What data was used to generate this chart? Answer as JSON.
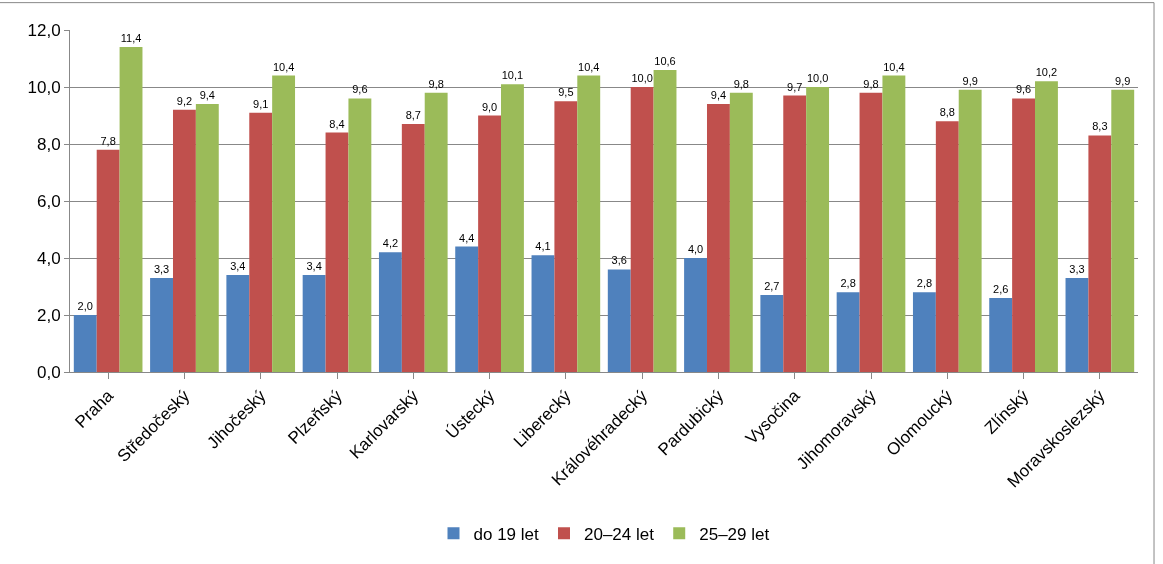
{
  "chart_data": {
    "type": "bar",
    "categories": [
      "Praha",
      "Středočeský",
      "Jihočeský",
      "Plzeňský",
      "Karlovarský",
      "Ústecký",
      "Liberecký",
      "Královéhradecký",
      "Pardubický",
      "Vysočina",
      "Jihomoravský",
      "Olomoucký",
      "Zlínský",
      "Moravskoslezský"
    ],
    "series": [
      {
        "name": "do 19 let",
        "color": "#4f81bd",
        "values": [
          2.0,
          3.3,
          3.4,
          3.4,
          4.2,
          4.4,
          4.1,
          3.6,
          4.0,
          2.7,
          2.8,
          2.8,
          2.6,
          3.3
        ],
        "value_labels": [
          "2,0",
          "3,3",
          "3,4",
          "3,4",
          "4,2",
          "4,4",
          "4,1",
          "3,6",
          "4,0",
          "2,7",
          "2,8",
          "2,8",
          "2,6",
          "3,3"
        ]
      },
      {
        "name": "20–24 let",
        "color": "#c0504d",
        "values": [
          7.8,
          9.2,
          9.1,
          8.4,
          8.7,
          9.0,
          9.5,
          10.0,
          9.4,
          9.7,
          9.8,
          8.8,
          9.6,
          8.3
        ],
        "value_labels": [
          "7,8",
          "9,2",
          "9,1",
          "8,4",
          "8,7",
          "9,0",
          "9,5",
          "10,0",
          "9,4",
          "9,7",
          "9,8",
          "8,8",
          "9,6",
          "8,3"
        ]
      },
      {
        "name": "25–29 let",
        "color": "#9bbb59",
        "values": [
          11.4,
          9.4,
          10.4,
          9.6,
          9.8,
          10.1,
          10.4,
          10.6,
          9.8,
          10.0,
          10.4,
          9.9,
          10.2,
          9.9
        ],
        "value_labels": [
          "11,4",
          "9,4",
          "10,4",
          "9,6",
          "9,8",
          "10,1",
          "10,4",
          "10,6",
          "9,8",
          "10,0",
          "10,4",
          "9,9",
          "10,2",
          "9,9"
        ]
      }
    ],
    "ylim": [
      0,
      12
    ],
    "yticks": [
      {
        "value": 0,
        "label": "0,0"
      },
      {
        "value": 2,
        "label": "2,0"
      },
      {
        "value": 4,
        "label": "4,0"
      },
      {
        "value": 6,
        "label": "6,0"
      },
      {
        "value": 8,
        "label": "8,0"
      },
      {
        "value": 10,
        "label": "10,0"
      },
      {
        "value": 12,
        "label": "12,0"
      }
    ],
    "grid": "y",
    "legend": "bottom"
  }
}
